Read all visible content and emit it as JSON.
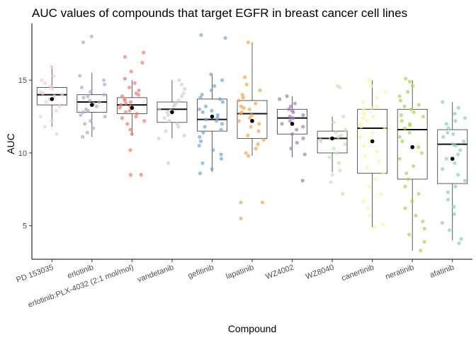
{
  "chart_data": {
    "type": "box_jitter",
    "title": "AUC values of compounds that target EGFR in breast cancer cell lines",
    "xlabel": "Compound",
    "ylabel": "AUC",
    "ylim": [
      2.7,
      18.9
    ],
    "yticks": [
      5,
      10,
      15
    ],
    "grid": false,
    "legend": "none",
    "categories": [
      "PD 153035",
      "erlotinib",
      "erlotinib:PLX-4032 (2:1 mol/mol)",
      "vandetanib",
      "gefitinib",
      "lapatinib",
      "WZ4002",
      "WZ8040",
      "canertinib",
      "neratinib",
      "afatinib"
    ],
    "colors": [
      "#f9c9dc",
      "#b3a6d0",
      "#f47b6c",
      "#cfcfcf",
      "#74a6cf",
      "#f5a544",
      "#a57bb9",
      "#c8e3b2",
      "#fbf493",
      "#a8d45a",
      "#86cfc0"
    ],
    "boxes": [
      {
        "q1": 13.3,
        "median": 14.0,
        "q3": 14.5,
        "whisker_low": 11.8,
        "whisker_high": 16.0,
        "mean": 13.7
      },
      {
        "q1": 12.8,
        "median": 13.5,
        "q3": 14.0,
        "whisker_low": 11.1,
        "whisker_high": 15.5,
        "mean": 13.3
      },
      {
        "q1": 12.7,
        "median": 13.3,
        "q3": 13.8,
        "whisker_low": 11.2,
        "whisker_high": 15.0,
        "mean": 13.1
      },
      {
        "q1": 12.1,
        "median": 13.0,
        "q3": 13.5,
        "whisker_low": 11.0,
        "whisker_high": 15.0,
        "mean": 12.8
      },
      {
        "q1": 11.5,
        "median": 12.3,
        "q3": 13.7,
        "whisker_low": 8.7,
        "whisker_high": 15.4,
        "mean": 12.5
      },
      {
        "q1": 11.0,
        "median": 12.7,
        "q3": 13.6,
        "whisker_low": 9.8,
        "whisker_high": 17.6,
        "mean": 12.2
      },
      {
        "q1": 11.3,
        "median": 12.4,
        "q3": 13.0,
        "whisker_low": 9.7,
        "whisker_high": 13.9,
        "mean": 12.0
      },
      {
        "q1": 10.0,
        "median": 11.0,
        "q3": 11.5,
        "whisker_low": 8.7,
        "whisker_high": 12.5,
        "mean": 11.0
      },
      {
        "q1": 8.6,
        "median": 11.7,
        "q3": 13.0,
        "whisker_low": 4.9,
        "whisker_high": 15.0,
        "mean": 10.8
      },
      {
        "q1": 8.2,
        "median": 11.6,
        "q3": 13.0,
        "whisker_low": 3.3,
        "whisker_high": 15.0,
        "mean": 10.4
      },
      {
        "q1": 7.9,
        "median": 10.6,
        "q3": 11.6,
        "whisker_low": 4.0,
        "whisker_high": 13.5,
        "mean": 9.6
      }
    ],
    "points": [
      [
        15.9,
        15.3,
        15.0,
        14.8,
        14.6,
        14.4,
        14.2,
        14.0,
        13.9,
        13.7,
        13.5,
        13.2,
        12.9,
        12.5,
        12.2,
        11.8,
        11.3,
        14.1,
        13.8
      ],
      [
        18.0,
        17.6,
        15.3,
        15.0,
        14.7,
        14.5,
        14.2,
        14.0,
        13.8,
        13.6,
        13.4,
        13.2,
        13.0,
        12.8,
        12.5,
        12.2,
        12.0,
        11.7,
        11.4,
        11.1,
        13.5,
        12.9,
        13.9,
        12.6
      ],
      [
        16.9,
        16.6,
        16.2,
        15.6,
        15.1,
        14.8,
        14.5,
        14.3,
        14.1,
        13.9,
        13.7,
        13.5,
        13.3,
        13.1,
        12.9,
        12.7,
        12.5,
        12.2,
        12.0,
        11.6,
        11.3,
        10.2,
        8.5,
        8.5,
        13.2,
        12.8,
        13.6,
        14.0,
        12.4,
        13.4
      ],
      [
        15.0,
        14.7,
        14.4,
        14.1,
        13.9,
        13.6,
        13.4,
        13.2,
        13.0,
        12.8,
        12.6,
        12.4,
        12.2,
        12.0,
        11.8,
        11.5,
        11.2,
        11.0,
        9.3,
        13.3,
        12.9
      ],
      [
        18.1,
        17.9,
        15.4,
        15.0,
        14.6,
        14.3,
        14.0,
        13.7,
        13.5,
        13.2,
        13.0,
        12.8,
        12.6,
        12.4,
        12.2,
        12.0,
        11.8,
        11.6,
        11.4,
        11.1,
        10.8,
        10.5,
        10.2,
        9.9,
        9.6,
        9.3,
        8.9,
        8.6,
        12.3,
        12.9,
        13.8
      ],
      [
        17.6,
        15.2,
        14.7,
        14.3,
        14.0,
        13.8,
        13.6,
        13.4,
        13.2,
        13.0,
        12.8,
        12.6,
        12.4,
        12.2,
        12.0,
        11.8,
        11.5,
        11.2,
        10.9,
        10.6,
        10.3,
        10.0,
        9.8,
        6.6,
        6.6,
        5.5,
        12.7,
        13.1
      ],
      [
        13.9,
        13.7,
        13.4,
        13.2,
        13.0,
        12.8,
        12.6,
        12.4,
        12.2,
        12.0,
        11.8,
        11.6,
        11.3,
        11.0,
        10.7,
        10.3,
        9.9,
        8.1,
        12.5,
        12.9
      ],
      [
        14.6,
        14.5,
        12.5,
        12.1,
        11.6,
        11.4,
        11.2,
        11.0,
        10.8,
        10.6,
        10.3,
        10.0,
        9.7,
        9.3,
        8.8,
        8.5,
        8.0,
        7.2,
        11.1,
        10.9
      ],
      [
        15.0,
        14.6,
        14.2,
        13.8,
        13.5,
        13.2,
        13.0,
        12.7,
        12.5,
        12.2,
        12.0,
        11.7,
        11.4,
        11.1,
        10.8,
        10.5,
        10.1,
        9.8,
        9.4,
        9.0,
        8.6,
        8.2,
        7.7,
        7.2,
        6.7,
        6.2,
        5.7,
        5.1,
        4.9,
        11.8,
        12.4,
        13.1
      ],
      [
        15.1,
        14.9,
        14.6,
        14.2,
        13.9,
        13.6,
        13.3,
        13.0,
        12.8,
        12.5,
        12.2,
        12.0,
        11.7,
        11.4,
        11.1,
        10.8,
        10.4,
        10.0,
        9.6,
        9.1,
        8.6,
        8.2,
        7.7,
        7.2,
        6.7,
        6.2,
        5.7,
        5.3,
        4.8,
        4.4,
        3.9,
        3.3,
        11.9,
        12.6,
        13.2
      ],
      [
        13.5,
        13.1,
        12.7,
        12.4,
        12.0,
        11.7,
        11.4,
        11.1,
        10.8,
        10.5,
        10.2,
        9.9,
        9.6,
        9.3,
        8.9,
        8.5,
        8.1,
        7.7,
        7.3,
        6.8,
        6.3,
        5.8,
        5.2,
        4.7,
        4.1,
        3.8,
        10.6,
        11.3,
        12.2
      ]
    ]
  }
}
